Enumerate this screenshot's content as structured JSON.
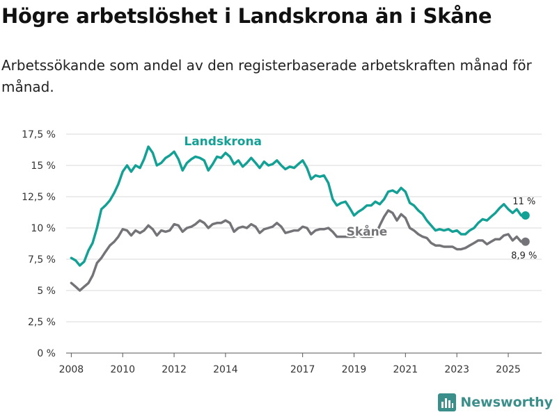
{
  "header": {
    "title": "Högre arbetslöshet i Landskrona än i Skåne",
    "subtitle": "Arbetssökande som andel av den registerbaserade arbetskraften månad för månad."
  },
  "brand": {
    "name": "Newsworthy",
    "color": "#3b8f8a"
  },
  "chart_data": {
    "type": "line",
    "title": "Högre arbetslöshet i Landskrona än i Skåne",
    "subtitle": "Arbetssökande som andel av den registerbaserade arbetskraften månad för månad.",
    "xlabel": "",
    "ylabel": "",
    "ylim": [
      0,
      17.5
    ],
    "yticks": [
      0,
      2.5,
      5,
      7.5,
      10,
      12.5,
      15,
      17.5
    ],
    "ytick_labels": [
      "0 %",
      "2,5 %",
      "5 %",
      "7,5 %",
      "10 %",
      "12,5 %",
      "15 %",
      "17,5 %"
    ],
    "xlim": [
      2007.8,
      2026.3
    ],
    "xticks": [
      2008,
      2010,
      2012,
      2014,
      2017,
      2019,
      2021,
      2023,
      2025
    ],
    "xtick_labels": [
      "2008",
      "2010",
      "2012",
      "2014",
      "2017",
      "2019",
      "2021",
      "2023",
      "2025"
    ],
    "grid": true,
    "series": [
      {
        "name": "Landskrona",
        "color": "#13a095",
        "end_label": "11 %",
        "x": [
          2008.0,
          2008.17,
          2008.33,
          2008.5,
          2008.67,
          2008.83,
          2009.0,
          2009.17,
          2009.33,
          2009.5,
          2009.67,
          2009.83,
          2010.0,
          2010.17,
          2010.33,
          2010.5,
          2010.67,
          2010.83,
          2011.0,
          2011.17,
          2011.33,
          2011.5,
          2011.67,
          2011.83,
          2012.0,
          2012.17,
          2012.33,
          2012.5,
          2012.67,
          2012.83,
          2013.0,
          2013.17,
          2013.33,
          2013.5,
          2013.67,
          2013.83,
          2014.0,
          2014.17,
          2014.33,
          2014.5,
          2014.67,
          2014.83,
          2015.0,
          2015.17,
          2015.33,
          2015.5,
          2015.67,
          2015.83,
          2016.0,
          2016.17,
          2016.33,
          2016.5,
          2016.67,
          2016.83,
          2017.0,
          2017.17,
          2017.33,
          2017.5,
          2017.67,
          2017.83,
          2018.0,
          2018.17,
          2018.33,
          2018.5,
          2018.67,
          2018.83,
          2019.0,
          2019.17,
          2019.33,
          2019.5,
          2019.67,
          2019.83,
          2020.0,
          2020.17,
          2020.33,
          2020.5,
          2020.67,
          2020.83,
          2021.0,
          2021.17,
          2021.33,
          2021.5,
          2021.67,
          2021.83,
          2022.0,
          2022.17,
          2022.33,
          2022.5,
          2022.67,
          2022.83,
          2023.0,
          2023.17,
          2023.33,
          2023.5,
          2023.67,
          2023.83,
          2024.0,
          2024.17,
          2024.33,
          2024.5,
          2024.67,
          2024.83,
          2025.0,
          2025.17,
          2025.33,
          2025.5,
          2025.67
        ],
        "values": [
          7.6,
          7.4,
          7.0,
          7.3,
          8.2,
          8.8,
          10.0,
          11.5,
          11.8,
          12.2,
          12.8,
          13.5,
          14.5,
          15.0,
          14.5,
          15.0,
          14.8,
          15.5,
          16.5,
          16.0,
          15.0,
          15.2,
          15.6,
          15.8,
          16.1,
          15.5,
          14.6,
          15.2,
          15.5,
          15.7,
          15.6,
          15.4,
          14.6,
          15.1,
          15.7,
          15.6,
          16.0,
          15.7,
          15.1,
          15.4,
          14.9,
          15.2,
          15.6,
          15.2,
          14.8,
          15.3,
          15.0,
          15.1,
          15.4,
          15.0,
          14.7,
          14.9,
          14.8,
          15.1,
          15.4,
          14.8,
          13.9,
          14.2,
          14.1,
          14.2,
          13.6,
          12.3,
          11.8,
          12.0,
          12.1,
          11.6,
          11.0,
          11.3,
          11.5,
          11.8,
          11.8,
          12.1,
          11.9,
          12.3,
          12.9,
          13.0,
          12.8,
          13.2,
          12.9,
          12.0,
          11.8,
          11.4,
          11.1,
          10.6,
          10.2,
          9.8,
          9.9,
          9.8,
          9.9,
          9.7,
          9.8,
          9.5,
          9.5,
          9.8,
          10.0,
          10.4,
          10.7,
          10.6,
          10.9,
          11.2,
          11.6,
          11.9,
          11.5,
          11.2,
          11.5,
          11.0,
          11.0
        ]
      },
      {
        "name": "Skåne",
        "color": "#747378",
        "end_label": "8,9 %",
        "x": [
          2008.0,
          2008.17,
          2008.33,
          2008.5,
          2008.67,
          2008.83,
          2009.0,
          2009.17,
          2009.33,
          2009.5,
          2009.67,
          2009.83,
          2010.0,
          2010.17,
          2010.33,
          2010.5,
          2010.67,
          2010.83,
          2011.0,
          2011.17,
          2011.33,
          2011.5,
          2011.67,
          2011.83,
          2012.0,
          2012.17,
          2012.33,
          2012.5,
          2012.67,
          2012.83,
          2013.0,
          2013.17,
          2013.33,
          2013.5,
          2013.67,
          2013.83,
          2014.0,
          2014.17,
          2014.33,
          2014.5,
          2014.67,
          2014.83,
          2015.0,
          2015.17,
          2015.33,
          2015.5,
          2015.67,
          2015.83,
          2016.0,
          2016.17,
          2016.33,
          2016.5,
          2016.67,
          2016.83,
          2017.0,
          2017.17,
          2017.33,
          2017.5,
          2017.67,
          2017.83,
          2018.0,
          2018.17,
          2018.33,
          2018.5,
          2018.67,
          2018.83,
          2019.0,
          2019.17,
          2019.33,
          2019.5,
          2019.67,
          2019.83,
          2020.0,
          2020.17,
          2020.33,
          2020.5,
          2020.67,
          2020.83,
          2021.0,
          2021.17,
          2021.33,
          2021.5,
          2021.67,
          2021.83,
          2022.0,
          2022.17,
          2022.33,
          2022.5,
          2022.67,
          2022.83,
          2023.0,
          2023.17,
          2023.33,
          2023.5,
          2023.67,
          2023.83,
          2024.0,
          2024.17,
          2024.33,
          2024.5,
          2024.67,
          2024.83,
          2025.0,
          2025.17,
          2025.33,
          2025.5,
          2025.67
        ],
        "values": [
          5.6,
          5.3,
          5.0,
          5.3,
          5.6,
          6.2,
          7.2,
          7.6,
          8.1,
          8.6,
          8.9,
          9.3,
          9.9,
          9.8,
          9.4,
          9.8,
          9.6,
          9.8,
          10.2,
          9.9,
          9.4,
          9.8,
          9.7,
          9.8,
          10.3,
          10.2,
          9.7,
          10.0,
          10.1,
          10.3,
          10.6,
          10.4,
          10.0,
          10.3,
          10.4,
          10.4,
          10.6,
          10.4,
          9.7,
          10.0,
          10.1,
          10.0,
          10.3,
          10.1,
          9.6,
          9.9,
          10.0,
          10.1,
          10.4,
          10.1,
          9.6,
          9.7,
          9.8,
          9.8,
          10.1,
          10.0,
          9.5,
          9.8,
          9.9,
          9.9,
          10.0,
          9.7,
          9.3,
          9.3,
          9.3,
          9.3,
          9.3,
          9.4,
          9.3,
          9.3,
          9.3,
          9.4,
          10.2,
          10.9,
          11.4,
          11.2,
          10.6,
          11.1,
          10.8,
          10.0,
          9.8,
          9.5,
          9.3,
          9.2,
          8.8,
          8.6,
          8.6,
          8.5,
          8.5,
          8.5,
          8.3,
          8.3,
          8.4,
          8.6,
          8.8,
          9.0,
          9.0,
          8.7,
          8.9,
          9.1,
          9.1,
          9.4,
          9.5,
          9.0,
          9.3,
          8.9,
          8.9
        ]
      }
    ]
  }
}
